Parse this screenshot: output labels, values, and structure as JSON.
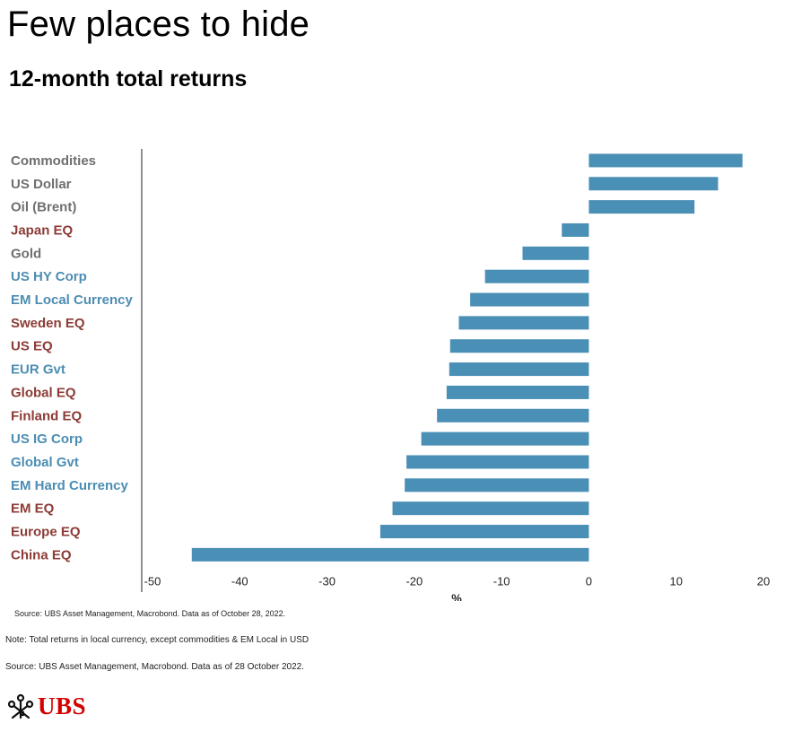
{
  "header": {
    "title": "Few places to hide",
    "subtitle": "12-month total returns"
  },
  "chart_data": {
    "type": "bar",
    "orientation": "horizontal",
    "title": "Few places to hide",
    "subtitle": "12-month total returns",
    "xlabel": "%",
    "ylabel": "",
    "xlim": [
      -50,
      20
    ],
    "x_ticks": [
      "-50",
      "-40",
      "-30",
      "-20",
      "-10",
      "0",
      "10",
      "20"
    ],
    "grid": false,
    "bar_color": "#4a8fb5",
    "label_colors": {
      "gray": "#6f6f6f",
      "red": "#8c3b36",
      "blue": "#4c8db3"
    },
    "categories": [
      "Commodities",
      "US Dollar",
      "Oil (Brent)",
      "Japan EQ",
      "Gold",
      "US HY Corp",
      "EM Local Currency",
      "Sweden EQ",
      "US EQ",
      "EUR Gvt",
      "Global EQ",
      "Finland EQ",
      "US IG Corp",
      "Global Gvt",
      "EM Hard Currency",
      "EM EQ",
      "Europe EQ",
      "China EQ"
    ],
    "category_label_color": [
      "gray",
      "gray",
      "gray",
      "red",
      "gray",
      "blue",
      "blue",
      "red",
      "red",
      "blue",
      "red",
      "red",
      "blue",
      "blue",
      "blue",
      "red",
      "red",
      "red"
    ],
    "values": [
      17.6,
      14.8,
      12.1,
      -3.1,
      -7.6,
      -11.9,
      -13.6,
      -14.9,
      -15.9,
      -16.0,
      -16.3,
      -17.4,
      -19.2,
      -20.9,
      -21.1,
      -22.5,
      -23.9,
      -45.5
    ]
  },
  "notes": {
    "source_small": "Source: UBS Asset Management, Macrobond. Data as of October 28, 2022.",
    "note": "Note: Total returns in local currency, except commodities & EM Local in USD",
    "source": "Source: UBS Asset Management, Macrobond. Data as of 28 October 2022."
  },
  "logo": {
    "text": "UBS",
    "icon": "ubs-keys-icon"
  }
}
